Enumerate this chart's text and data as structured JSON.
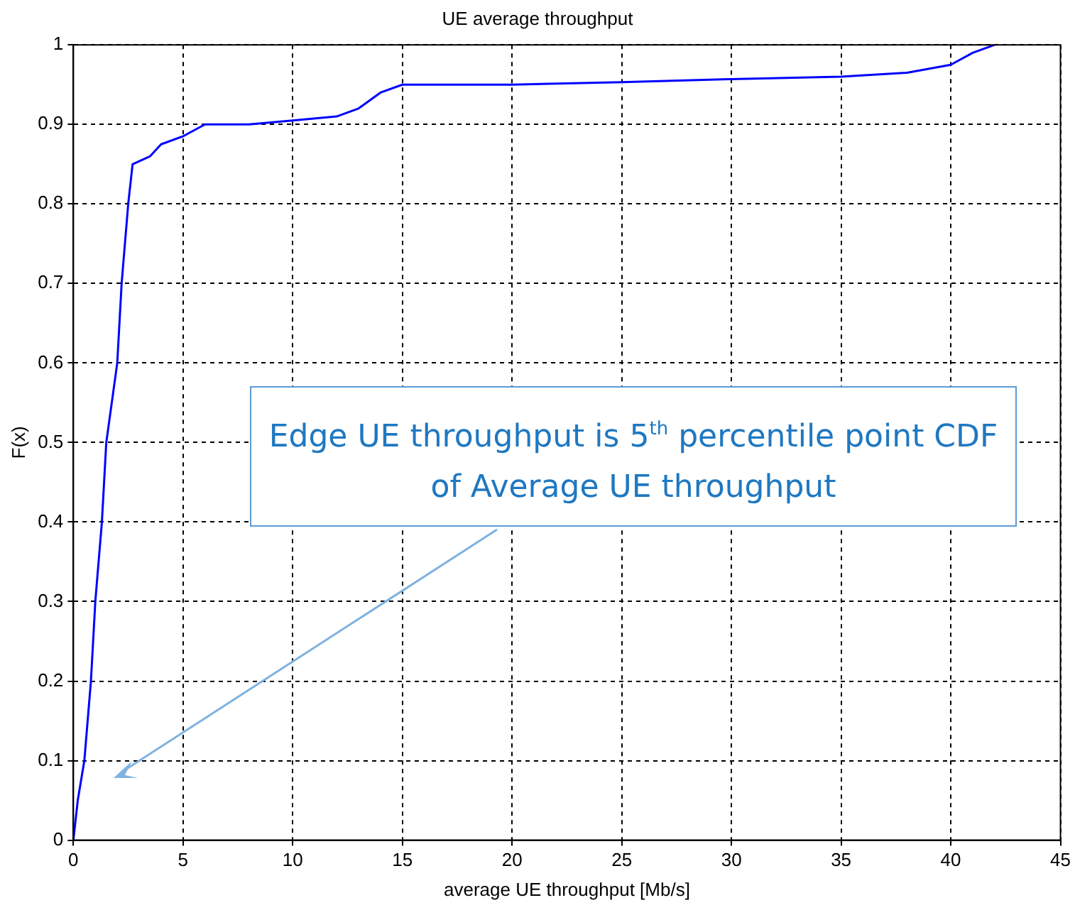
{
  "chart_data": {
    "type": "line",
    "title": "UE average throughput",
    "xlabel": "average UE throughput [Mb/s]",
    "ylabel": "F(x)",
    "x": [
      0,
      0.2,
      0.5,
      0.8,
      1.0,
      1.3,
      1.5,
      1.8,
      2.0,
      2.2,
      2.5,
      2.7,
      3.5,
      4,
      5,
      6,
      8,
      10,
      12,
      13,
      14,
      15,
      20,
      25,
      30,
      35,
      38,
      40,
      41,
      42
    ],
    "series": [
      {
        "color": "#0000ff",
        "values": [
          0,
          0.05,
          0.1,
          0.2,
          0.3,
          0.4,
          0.5,
          0.56,
          0.6,
          0.7,
          0.8,
          0.85,
          0.86,
          0.875,
          0.885,
          0.9,
          0.9,
          0.905,
          0.91,
          0.92,
          0.94,
          0.95,
          0.95,
          0.953,
          0.957,
          0.96,
          0.965,
          0.975,
          0.99,
          1.0
        ]
      }
    ],
    "xlim": [
      0,
      45
    ],
    "xticks": [
      0,
      5,
      10,
      15,
      20,
      25,
      30,
      35,
      40,
      45
    ],
    "ylim": [
      0,
      1
    ],
    "yticks": [
      0,
      0.1,
      0.2,
      0.3,
      0.4,
      0.5,
      0.6,
      0.7,
      0.8,
      0.9,
      1
    ],
    "grid": true,
    "legend": false,
    "marker": "none",
    "line_style": "solid",
    "annotations": [
      "Edge UE throughput is 5$^{th}$ percentile point CDF of Average UE throughput"
    ]
  }
}
